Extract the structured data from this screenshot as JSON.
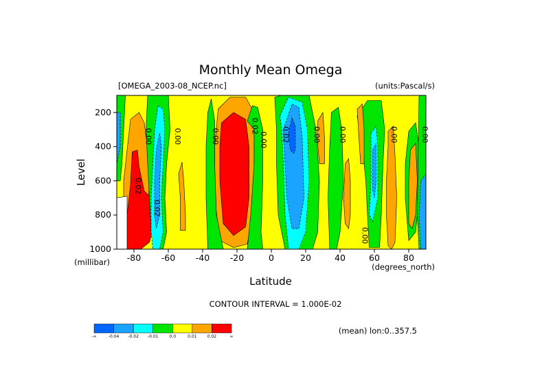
{
  "chart_data": {
    "type": "filled-contour",
    "title": "Monthly Mean Omega",
    "source_file": "[OMEGA_2003-08_NCEP.nc]",
    "units_label": "(units:Pascal/s)",
    "xlabel": "Latitude",
    "x_unit_label": "(degrees_north)",
    "ylabel": "Level",
    "y_unit_label": "(millibar)",
    "xlim": [
      -90,
      90
    ],
    "ylim": [
      1000,
      100
    ],
    "x_ticks": [
      -80,
      -60,
      -40,
      -20,
      0,
      20,
      40,
      60,
      80
    ],
    "x_tick_labels": [
      "-80",
      "-60",
      "-40",
      "-20",
      "0",
      "20",
      "40",
      "60",
      "80"
    ],
    "y_ticks": [
      200,
      400,
      600,
      800,
      1000
    ],
    "y_tick_labels": [
      "200",
      "400",
      "600",
      "800",
      "1000"
    ],
    "contour_interval_text": "CONTOUR INTERVAL = 1.000E-02",
    "mean_note": "(mean) lon:0..357.5",
    "background_color": "#ffff00",
    "colorbar": {
      "colors": [
        "#0066ff",
        "#1aa3ff",
        "#00ffff",
        "#00e600",
        "#ffff00",
        "#ffa500",
        "#ff0000"
      ],
      "labels": [
        "-∞",
        "-0.04",
        "-0.02",
        "-0.01",
        "0.0",
        "0.01",
        "0.02",
        "∞"
      ]
    },
    "regions": [
      {
        "color": "#00e600",
        "points": [
          [
            -90,
            100
          ],
          [
            -85,
            100
          ],
          [
            -86,
            300
          ],
          [
            -87,
            500
          ],
          [
            -88,
            600
          ],
          [
            -90,
            600
          ]
        ]
      },
      {
        "color": "#1aa3ff",
        "points": [
          [
            -90,
            200
          ],
          [
            -88,
            200
          ],
          [
            -88,
            400
          ],
          [
            -90,
            500
          ]
        ]
      },
      {
        "color": "#ffa500",
        "points": [
          [
            -82,
            240
          ],
          [
            -77,
            200
          ],
          [
            -74,
            260
          ],
          [
            -72,
            420
          ],
          [
            -71,
            600
          ],
          [
            -72,
            800
          ],
          [
            -74,
            960
          ],
          [
            -78,
            1000
          ],
          [
            -84,
            1000
          ],
          [
            -86,
            800
          ],
          [
            -86,
            600
          ],
          [
            -84,
            420
          ]
        ]
      },
      {
        "color": "#ff0000",
        "points": [
          [
            -81,
            430
          ],
          [
            -78,
            420
          ],
          [
            -77,
            520
          ],
          [
            -74,
            660
          ],
          [
            -70,
            700
          ],
          [
            -68,
            800
          ],
          [
            -69,
            880
          ],
          [
            -71,
            960
          ],
          [
            -76,
            1000
          ],
          [
            -84,
            1000
          ],
          [
            -84,
            800
          ],
          [
            -82,
            620
          ]
        ]
      },
      {
        "color": "#ffffff",
        "points": [
          [
            -90,
            700
          ],
          [
            -84,
            690
          ],
          [
            -84,
            1000
          ],
          [
            -90,
            1000
          ]
        ]
      },
      {
        "color": "#00e600",
        "points": [
          [
            -72,
            100
          ],
          [
            -60,
            100
          ],
          [
            -59,
            300
          ],
          [
            -61,
            500
          ],
          [
            -62,
            700
          ],
          [
            -61,
            900
          ],
          [
            -63,
            1000
          ],
          [
            -68,
            1000
          ],
          [
            -70,
            900
          ],
          [
            -71,
            700
          ],
          [
            -72,
            500
          ],
          [
            -73,
            300
          ]
        ]
      },
      {
        "color": "#00ffff",
        "points": [
          [
            -66,
            160
          ],
          [
            -63,
            180
          ],
          [
            -62,
            300
          ],
          [
            -63,
            500
          ],
          [
            -64,
            700
          ],
          [
            -63,
            900
          ],
          [
            -65,
            1000
          ],
          [
            -69,
            1000
          ],
          [
            -70,
            900
          ],
          [
            -70,
            700
          ],
          [
            -69,
            500
          ],
          [
            -68,
            300
          ]
        ]
      },
      {
        "color": "#1aa3ff",
        "points": [
          [
            -65,
            320
          ],
          [
            -64,
            400
          ],
          [
            -65,
            600
          ],
          [
            -65,
            800
          ],
          [
            -67,
            880
          ],
          [
            -68,
            800
          ],
          [
            -68,
            600
          ],
          [
            -67,
            420
          ]
        ]
      },
      {
        "color": "#ffa500",
        "points": [
          [
            -52,
            490
          ],
          [
            -51,
            600
          ],
          [
            -50,
            800
          ],
          [
            -50,
            890
          ],
          [
            -53,
            890
          ],
          [
            -53,
            700
          ],
          [
            -54,
            560
          ]
        ]
      },
      {
        "color": "#ffa500",
        "points": [
          [
            -31,
            180
          ],
          [
            -24,
            110
          ],
          [
            -15,
            110
          ],
          [
            -10,
            200
          ],
          [
            -10,
            500
          ],
          [
            -11,
            800
          ],
          [
            -14,
            970
          ],
          [
            -22,
            990
          ],
          [
            -30,
            950
          ],
          [
            -33,
            700
          ],
          [
            -33,
            400
          ]
        ]
      },
      {
        "color": "#ff0000",
        "points": [
          [
            -29,
            260
          ],
          [
            -22,
            200
          ],
          [
            -15,
            240
          ],
          [
            -13,
            400
          ],
          [
            -13,
            700
          ],
          [
            -15,
            870
          ],
          [
            -22,
            920
          ],
          [
            -28,
            850
          ],
          [
            -30,
            600
          ],
          [
            -30,
            400
          ]
        ]
      },
      {
        "color": "#00e600",
        "points": [
          [
            -37,
            200
          ],
          [
            -35,
            120
          ],
          [
            -33,
            250
          ],
          [
            -33,
            500
          ],
          [
            -32,
            800
          ],
          [
            -28,
            1000
          ],
          [
            -37,
            1000
          ],
          [
            -38,
            700
          ],
          [
            -38,
            400
          ]
        ]
      },
      {
        "color": "#00e600",
        "points": [
          [
            -14,
            250
          ],
          [
            -11,
            160
          ],
          [
            -8,
            170
          ],
          [
            -5,
            300
          ],
          [
            -5,
            600
          ],
          [
            -6,
            900
          ],
          [
            -5,
            1000
          ],
          [
            -14,
            1000
          ],
          [
            -12,
            800
          ],
          [
            -10,
            500
          ],
          [
            -10,
            300
          ]
        ]
      },
      {
        "color": "#00e600",
        "points": [
          [
            2,
            110
          ],
          [
            6,
            100
          ],
          [
            22,
            100
          ],
          [
            26,
            300
          ],
          [
            28,
            600
          ],
          [
            27,
            900
          ],
          [
            24,
            1000
          ],
          [
            8,
            1000
          ],
          [
            4,
            800
          ],
          [
            3,
            500
          ],
          [
            3,
            300
          ]
        ]
      },
      {
        "color": "#00ffff",
        "points": [
          [
            5,
            220
          ],
          [
            10,
            110
          ],
          [
            18,
            140
          ],
          [
            21,
            300
          ],
          [
            22,
            600
          ],
          [
            20,
            900
          ],
          [
            16,
            1000
          ],
          [
            10,
            1000
          ],
          [
            8,
            800
          ],
          [
            7,
            500
          ],
          [
            6,
            300
          ]
        ]
      },
      {
        "color": "#1aa3ff",
        "points": [
          [
            7,
            300
          ],
          [
            12,
            150
          ],
          [
            16,
            170
          ],
          [
            18,
            350
          ],
          [
            19,
            700
          ],
          [
            16,
            880
          ],
          [
            12,
            880
          ],
          [
            9,
            700
          ],
          [
            8,
            500
          ]
        ]
      },
      {
        "color": "#0066ff",
        "points": [
          [
            10,
            320
          ],
          [
            12,
            230
          ],
          [
            14,
            280
          ],
          [
            14,
            420
          ],
          [
            13,
            440
          ],
          [
            11,
            420
          ]
        ]
      },
      {
        "color": "#ffa500",
        "points": [
          [
            27,
            250
          ],
          [
            30,
            200
          ],
          [
            31,
            350
          ],
          [
            31,
            500
          ],
          [
            28,
            500
          ],
          [
            27,
            380
          ]
        ]
      },
      {
        "color": "#00e600",
        "points": [
          [
            35,
            200
          ],
          [
            39,
            170
          ],
          [
            41,
            300
          ],
          [
            42,
            600
          ],
          [
            40,
            900
          ],
          [
            38,
            1000
          ],
          [
            34,
            1000
          ],
          [
            33,
            700
          ],
          [
            34,
            400
          ]
        ]
      },
      {
        "color": "#ffa500",
        "points": [
          [
            43,
            500
          ],
          [
            45,
            470
          ],
          [
            46,
            600
          ],
          [
            46,
            800
          ],
          [
            45,
            880
          ],
          [
            43,
            850
          ],
          [
            42,
            700
          ]
        ]
      },
      {
        "color": "#00e600",
        "points": [
          [
            50,
            220
          ],
          [
            56,
            130
          ],
          [
            64,
            130
          ],
          [
            66,
            300
          ],
          [
            65,
            500
          ],
          [
            64,
            800
          ],
          [
            63,
            990
          ],
          [
            57,
            990
          ],
          [
            56,
            800
          ],
          [
            55,
            600
          ],
          [
            53,
            400
          ]
        ]
      },
      {
        "color": "#00ffff",
        "points": [
          [
            58,
            320
          ],
          [
            61,
            280
          ],
          [
            62,
            400
          ],
          [
            62,
            700
          ],
          [
            59,
            840
          ],
          [
            57,
            800
          ],
          [
            58,
            600
          ]
        ]
      },
      {
        "color": "#1aa3ff",
        "points": [
          [
            59,
            420
          ],
          [
            61,
            380
          ],
          [
            61,
            600
          ],
          [
            60,
            700
          ],
          [
            59,
            650
          ]
        ]
      },
      {
        "color": "#ffa500",
        "points": [
          [
            50,
            180
          ],
          [
            53,
            150
          ],
          [
            54,
            300
          ],
          [
            54,
            500
          ],
          [
            52,
            500
          ],
          [
            51,
            350
          ]
        ]
      },
      {
        "color": "#ffa500",
        "points": [
          [
            68,
            310
          ],
          [
            71,
            280
          ],
          [
            72,
            450
          ],
          [
            73,
            700
          ],
          [
            72,
            960
          ],
          [
            70,
            1000
          ],
          [
            68,
            980
          ],
          [
            67,
            800
          ],
          [
            67,
            600
          ],
          [
            68,
            400
          ]
        ]
      },
      {
        "color": "#00e600",
        "points": [
          [
            80,
            310
          ],
          [
            84,
            260
          ],
          [
            86,
            400
          ],
          [
            86,
            700
          ],
          [
            84,
            900
          ],
          [
            80,
            950
          ],
          [
            78,
            700
          ],
          [
            78,
            500
          ]
        ]
      },
      {
        "color": "#ffa500",
        "points": [
          [
            81,
            420
          ],
          [
            84,
            380
          ],
          [
            85,
            600
          ],
          [
            84,
            800
          ],
          [
            82,
            880
          ],
          [
            80,
            850
          ],
          [
            80,
            600
          ]
        ]
      },
      {
        "color": "#00e600",
        "points": [
          [
            86,
            100
          ],
          [
            90,
            100
          ],
          [
            90,
            1000
          ],
          [
            86,
            1000
          ],
          [
            85,
            800
          ]
        ]
      },
      {
        "color": "#1aa3ff",
        "points": [
          [
            87,
            600
          ],
          [
            90,
            560
          ],
          [
            90,
            1000
          ],
          [
            87,
            1000
          ],
          [
            86,
            800
          ]
        ]
      }
    ],
    "contour_labels": [
      {
        "text": "0.00",
        "x": -73,
        "y": 340
      },
      {
        "text": "0.00",
        "x": -56,
        "y": 340
      },
      {
        "text": "0.00",
        "x": -34,
        "y": 340
      },
      {
        "text": "0.02",
        "x": -11,
        "y": 280
      },
      {
        "text": "0.00",
        "x": -6,
        "y": 360
      },
      {
        "text": "0.02",
        "x": 7,
        "y": 330
      },
      {
        "text": "0.00",
        "x": 25,
        "y": 330
      },
      {
        "text": "0.00",
        "x": 40,
        "y": 330
      },
      {
        "text": "0.00",
        "x": 70,
        "y": 330
      },
      {
        "text": "0.00",
        "x": 88,
        "y": 330
      },
      {
        "text": "0.02",
        "x": -79,
        "y": 630
      },
      {
        "text": "0.02",
        "x": -68,
        "y": 760
      },
      {
        "text": "0.00",
        "x": 53,
        "y": 920
      }
    ]
  }
}
